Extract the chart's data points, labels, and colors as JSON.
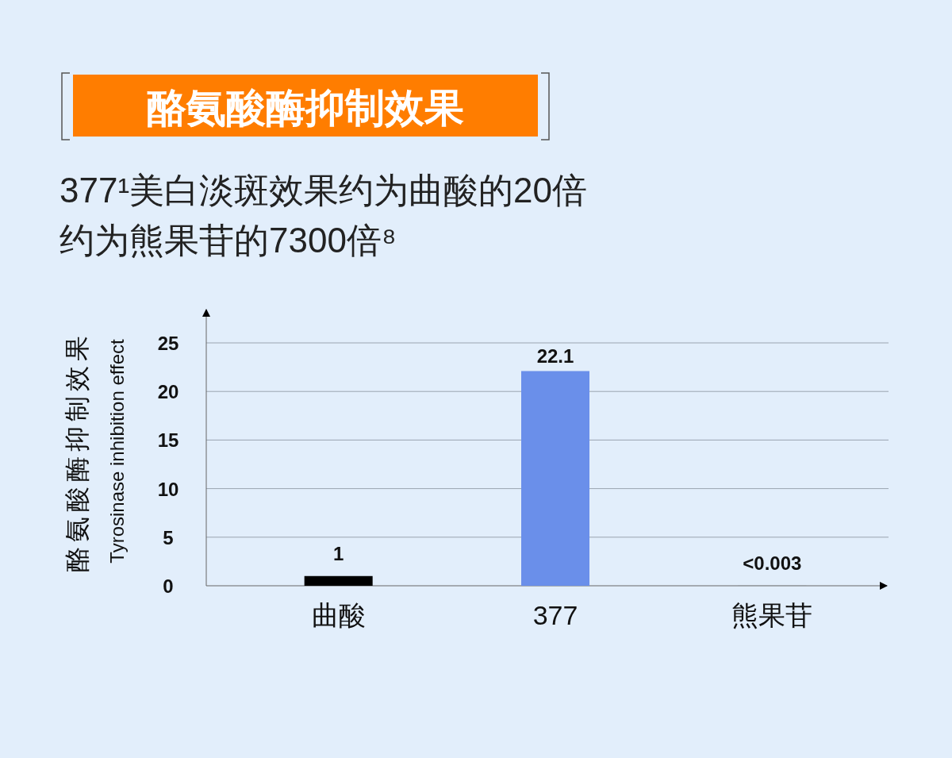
{
  "chart_data": {
    "type": "bar",
    "title": "酪氨酸酶抑制效果",
    "subtitle": "377¹美白淡斑效果约为曲酸的20倍约为熊果苷的7300倍⁸",
    "ylabel": "酪氨酸酶抑制效果\nTyrosinase inhibition effect",
    "categories": [
      "曲酸",
      "377",
      "熊果苷"
    ],
    "values": [
      1,
      22.1,
      0.003
    ],
    "colors": [
      "#000000",
      "#6a8fea",
      "#000000"
    ],
    "value_labels": [
      "1",
      "22.1",
      "<0.003"
    ],
    "ylim": [
      0,
      25
    ],
    "yticks": [
      0,
      5,
      10,
      15,
      20,
      25
    ],
    "grid": "y"
  }
}
